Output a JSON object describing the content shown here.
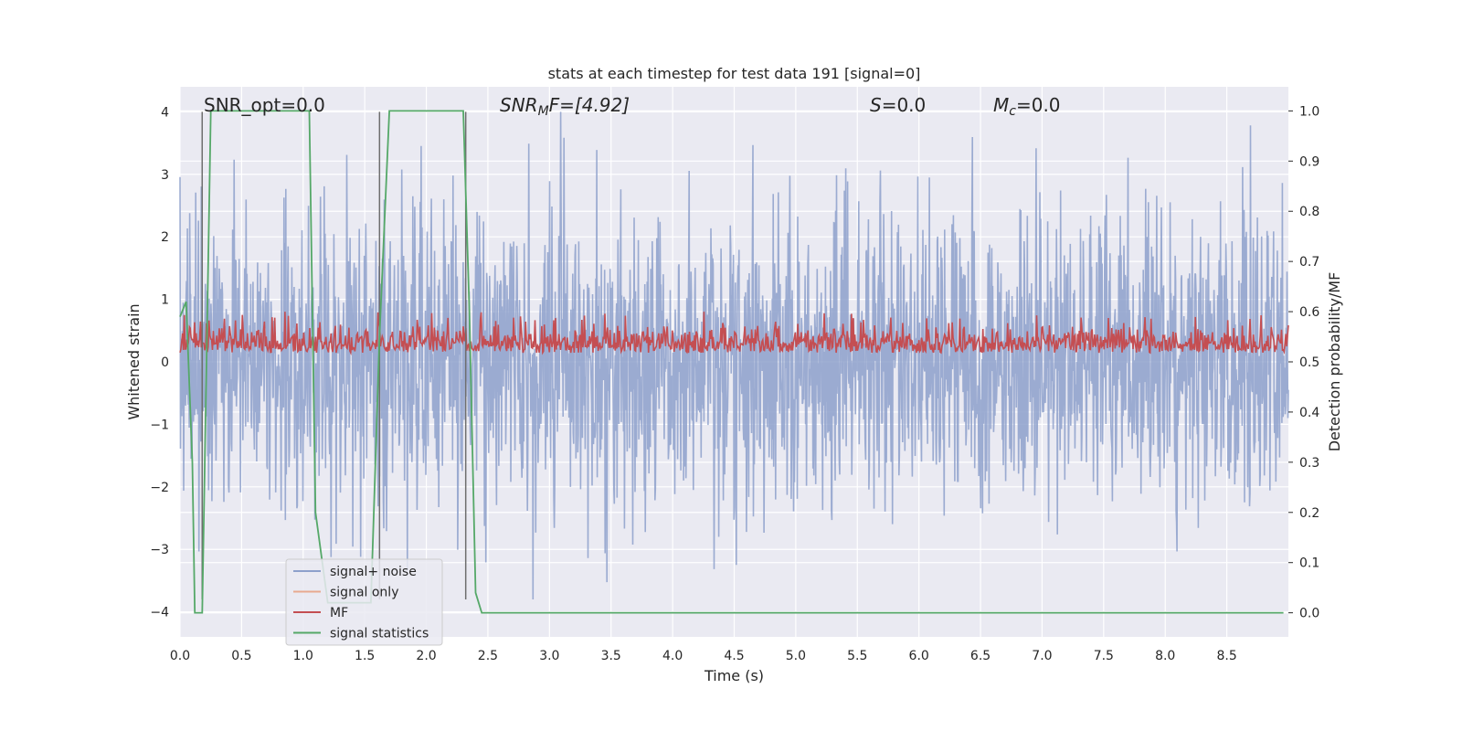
{
  "chart_data": {
    "type": "line",
    "title": "stats at each timestep for test data 191 [signal=0]",
    "xlabel": "Time (s)",
    "ylabel_left": "Whitened strain",
    "ylabel_right": "Detection probability/MF",
    "xlim": [
      0.0,
      9.0
    ],
    "ylim_left": [
      -4.4,
      4.4
    ],
    "ylim_right": [
      -0.048,
      1.048
    ],
    "x_ticks": [
      "0.0",
      "0.5",
      "1.0",
      "1.5",
      "2.0",
      "2.5",
      "3.0",
      "3.5",
      "4.0",
      "4.5",
      "5.0",
      "5.5",
      "6.0",
      "6.5",
      "7.0",
      "7.5",
      "8.0",
      "8.5"
    ],
    "y_ticks_left": [
      "4",
      "3",
      "2",
      "1",
      "0",
      "−1",
      "−2",
      "−3",
      "−4"
    ],
    "y_ticks_right": [
      "1.0",
      "0.9",
      "0.8",
      "0.7",
      "0.6",
      "0.5",
      "0.4",
      "0.3",
      "0.2",
      "0.1",
      "0.0"
    ],
    "grid": true,
    "annotations": {
      "snr_opt": "SNR_opt=0.0",
      "snr_mf_base": "SNR",
      "snr_mf_sub": "M",
      "snr_mf_rest": "F=[4.92]",
      "s_base": "S",
      "s_rest": "=0.0",
      "mc_base": "M",
      "mc_sub": "c",
      "mc_rest": "=0.0"
    },
    "vertical_lines_x": [
      0.18,
      1.62,
      2.32
    ],
    "series": [
      {
        "name": "signal+ noise",
        "color": "#8da0cb",
        "axis": "left",
        "kind": "noise",
        "envelope": [
          -3.8,
          4.0
        ]
      },
      {
        "name": "signal only",
        "color": "#e8a98f",
        "axis": "left",
        "kind": "flat",
        "values": []
      },
      {
        "name": "MF",
        "color": "#c44e52",
        "axis": "right",
        "kind": "mf",
        "envelope": [
          0.5,
          0.6
        ]
      },
      {
        "name": "signal statistics",
        "color": "#55a868",
        "axis": "right",
        "x": [
          0.0,
          0.05,
          0.1,
          0.12,
          0.18,
          0.25,
          0.3,
          0.6,
          1.0,
          1.05,
          1.1,
          1.2,
          1.55,
          1.62,
          1.7,
          2.0,
          2.3,
          2.35,
          2.4,
          2.45,
          4.0,
          6.0,
          8.96
        ],
        "y": [
          0.59,
          0.62,
          0.3,
          0.0,
          0.0,
          1.0,
          1.0,
          1.0,
          1.0,
          1.0,
          0.2,
          0.02,
          0.02,
          0.55,
          1.0,
          1.0,
          1.0,
          0.6,
          0.04,
          0.0,
          0.0,
          0.0,
          0.0
        ]
      }
    ],
    "legend": {
      "placement": "lower-left",
      "entries": [
        "signal+ noise",
        "signal only",
        "MF",
        "signal statistics"
      ]
    }
  }
}
